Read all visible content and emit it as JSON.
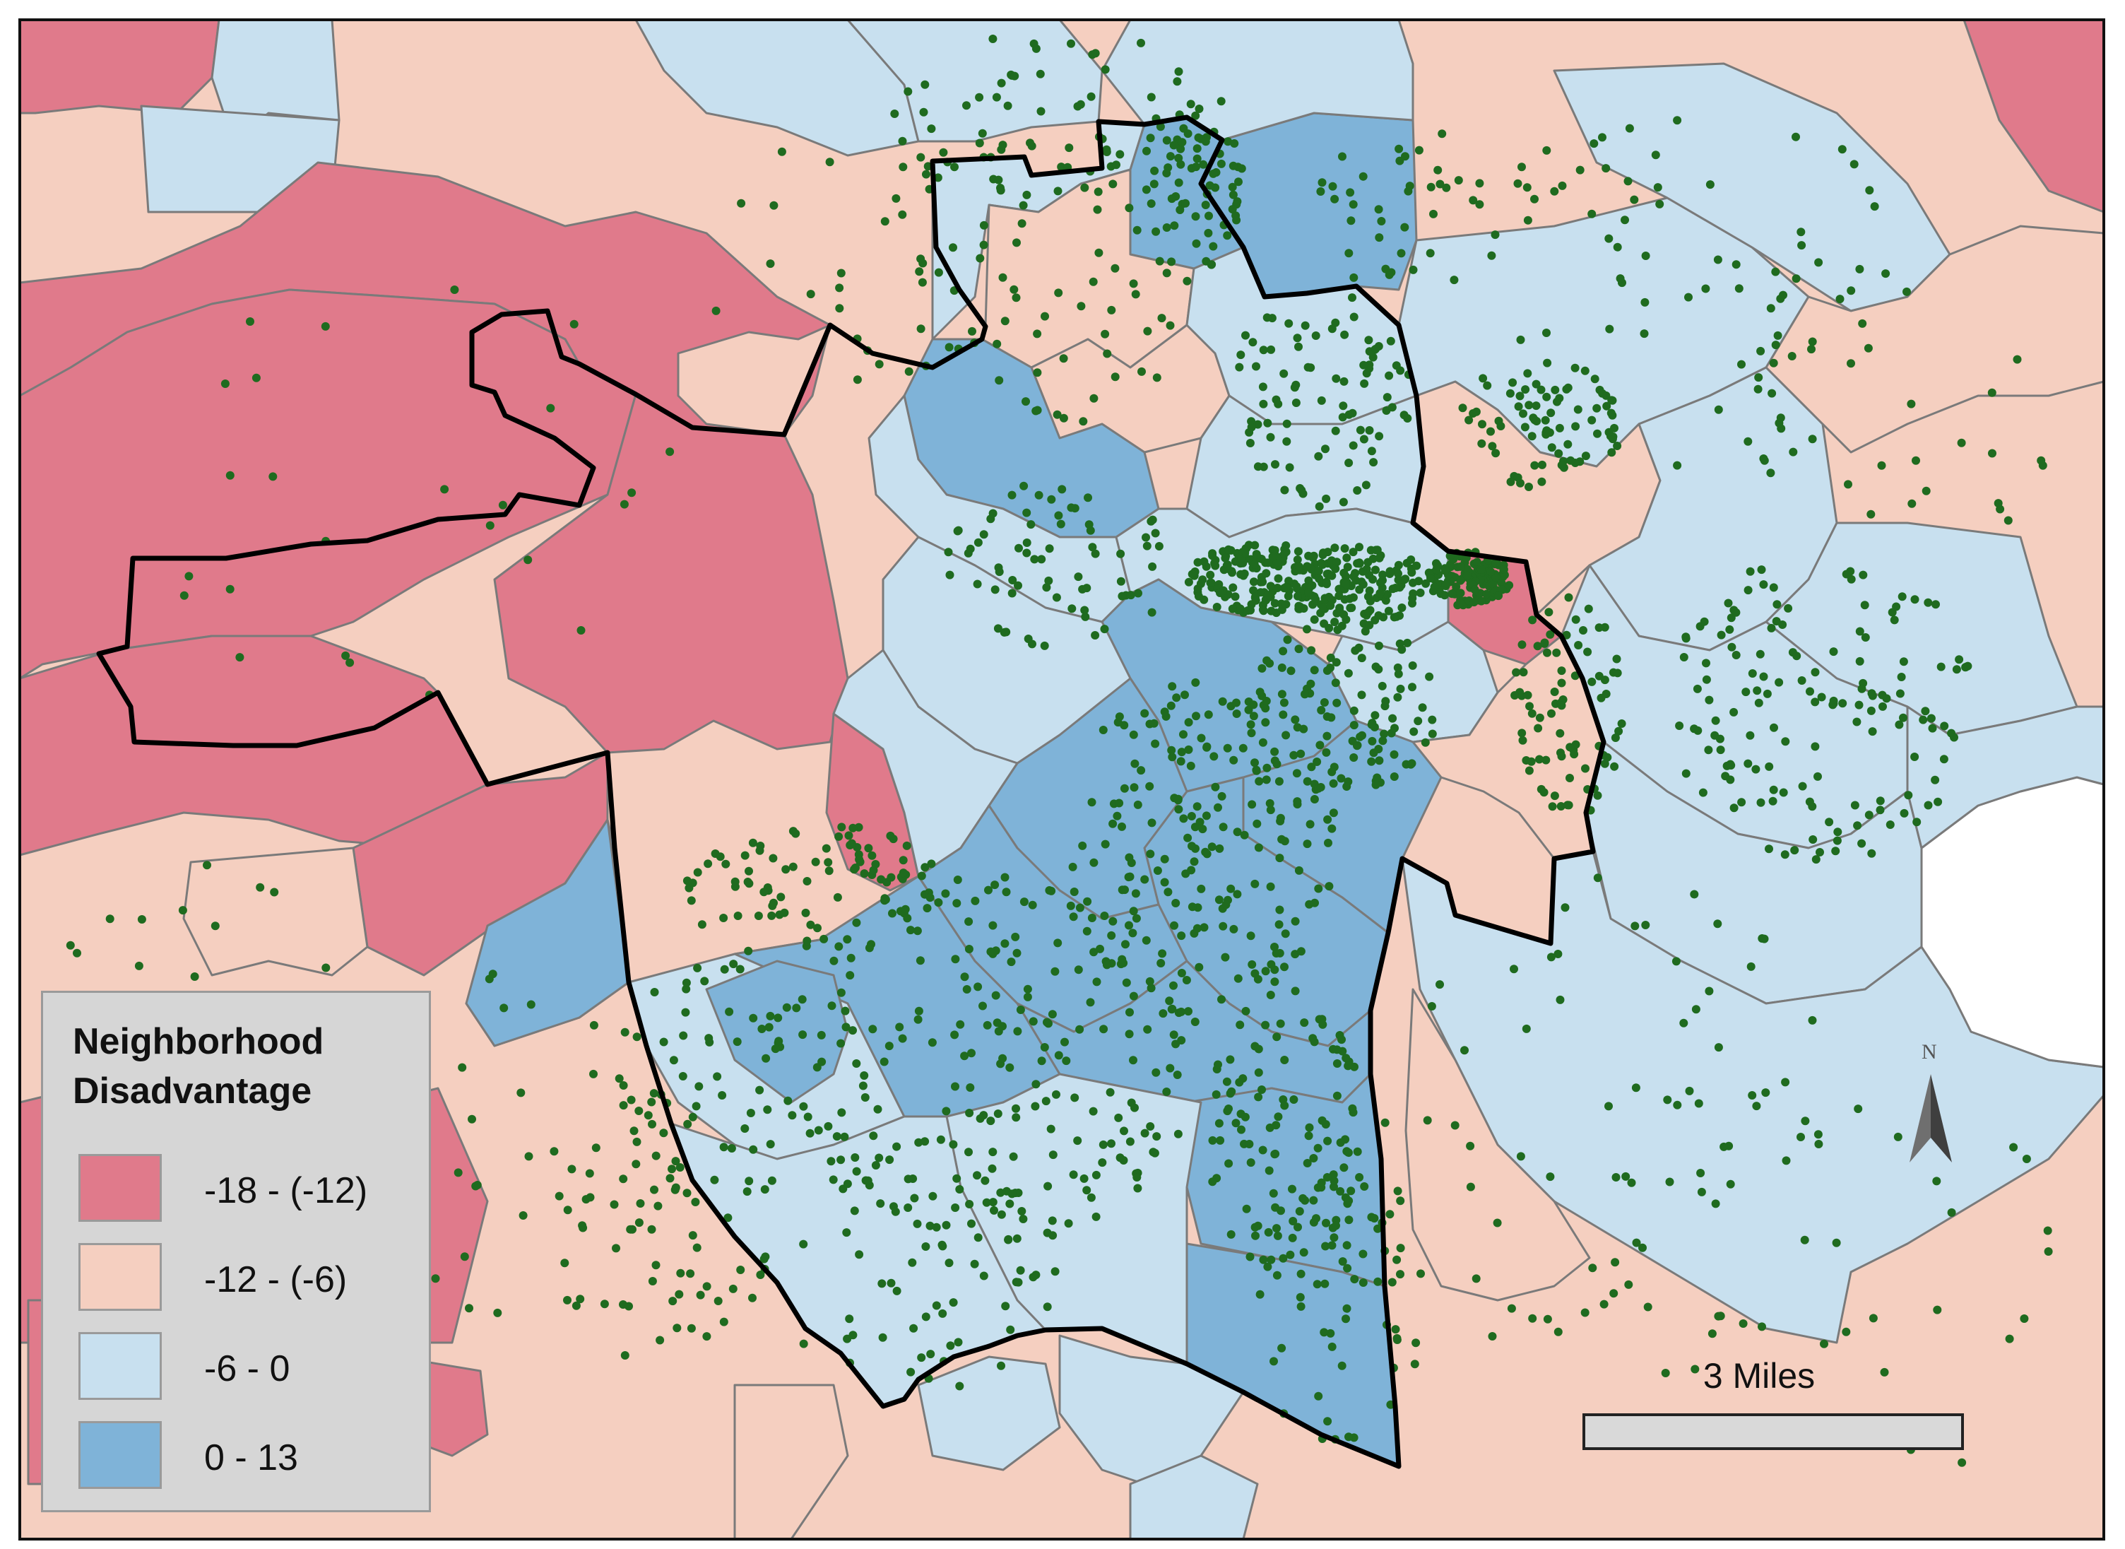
{
  "map": {
    "legend_title_line1": "Neighborhood",
    "legend_title_line2": "Disadvantage",
    "legend": [
      {
        "label": "-18 - (-12)",
        "color": "#e07a8b"
      },
      {
        "label": "-12 - (-6)",
        "color": "#f5cfc0"
      },
      {
        "label": "-6 - 0",
        "color": "#c8e0ef"
      },
      {
        "label": "0 - 13",
        "color": "#7fb3d8"
      }
    ],
    "scalebar_label": "3 Miles",
    "north_label": "N",
    "colors": {
      "tract_border": "#7a7a7a",
      "city_boundary": "#000000",
      "point": "#1f6b1f",
      "background": "#ffffff"
    }
  }
}
